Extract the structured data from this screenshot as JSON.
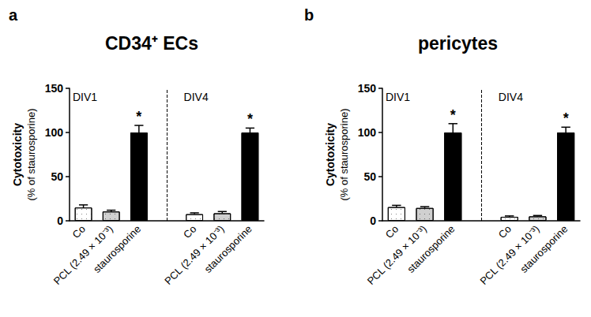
{
  "chart_data": [
    {
      "type": "bar",
      "panel": "a",
      "title": "CD34⁺ ECs",
      "y_label": "Cytotoxicity",
      "y_sublabel": "(% of staurosporine)",
      "ylim": [
        0,
        150
      ],
      "yticks": [
        0,
        50,
        100,
        150
      ],
      "groups": [
        {
          "name": "DIV1",
          "categories": [
            "Co",
            "PCL (2.49 × 10⁻³)",
            "staurosporine"
          ],
          "values": [
            15,
            10.5,
            100
          ],
          "errors": [
            3,
            1.5,
            8
          ],
          "colors": [
            "#ffffff",
            "#d0d0d0",
            "#000000"
          ],
          "annotations": [
            null,
            null,
            "*"
          ]
        },
        {
          "name": "DIV4",
          "categories": [
            "Co",
            "PCL (2.49 × 10⁻³)",
            "staurosporine"
          ],
          "values": [
            7.5,
            8.5,
            100
          ],
          "errors": [
            1.5,
            2,
            5
          ],
          "colors": [
            "#ffffff",
            "#d0d0d0",
            "#000000"
          ],
          "annotations": [
            null,
            null,
            "*"
          ]
        }
      ]
    },
    {
      "type": "bar",
      "panel": "b",
      "title": "pericytes",
      "y_label": "Cytotoxicity",
      "y_sublabel": "(% of staurosporine)",
      "ylim": [
        0,
        150
      ],
      "yticks": [
        0,
        50,
        100,
        150
      ],
      "groups": [
        {
          "name": "DIV1",
          "categories": [
            "Co",
            "PCL (2.49 × 10⁻³)",
            "staurosporine"
          ],
          "values": [
            15.5,
            14.5,
            100
          ],
          "errors": [
            2,
            1.5,
            10
          ],
          "colors": [
            "#ffffff",
            "#d0d0d0",
            "#000000"
          ],
          "annotations": [
            null,
            null,
            "*"
          ]
        },
        {
          "name": "DIV4",
          "categories": [
            "Co",
            "PCL (2.49 × 10⁻³)",
            "staurosporine"
          ],
          "values": [
            4.5,
            5,
            100
          ],
          "errors": [
            1,
            1,
            6
          ],
          "colors": [
            "#ffffff",
            "#d0d0d0",
            "#000000"
          ],
          "annotations": [
            null,
            null,
            "*"
          ]
        }
      ]
    }
  ]
}
